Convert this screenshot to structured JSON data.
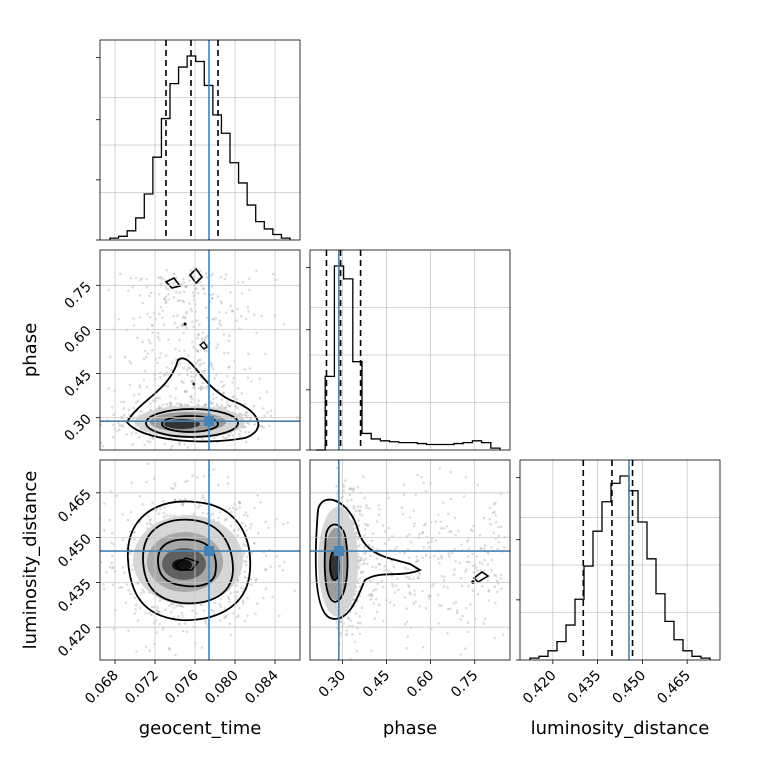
{
  "chart_data": {
    "type": "corner",
    "parameters": [
      {
        "name": "geocent_time",
        "range": [
          0.0665,
          0.0865
        ],
        "ticks": [
          0.068,
          0.072,
          0.076,
          0.08,
          0.084
        ],
        "tick_labels": [
          "0.068",
          "0.072",
          "0.076",
          "0.080",
          "0.084"
        ],
        "truth": 0.0774,
        "quantiles": [
          0.0731,
          0.0756,
          0.0783
        ]
      },
      {
        "name": "phase",
        "range": [
          0.19,
          0.87
        ],
        "ticks": [
          0.3,
          0.45,
          0.6,
          0.75
        ],
        "tick_labels": [
          "0.30",
          "0.45",
          "0.60",
          "0.75"
        ],
        "truth": 0.288,
        "quantiles": [
          0.246,
          0.294,
          0.362
        ]
      },
      {
        "name": "luminosity_distance",
        "range": [
          0.409,
          0.476
        ],
        "ticks": [
          0.42,
          0.435,
          0.45,
          0.465
        ],
        "tick_labels": [
          "0.420",
          "0.435",
          "0.450",
          "0.465"
        ],
        "truth": 0.4455,
        "quantiles": [
          0.4302,
          0.4398,
          0.4467
        ]
      }
    ],
    "histograms": [
      {
        "param": "geocent_time",
        "counts": [
          0.01,
          0.02,
          0.05,
          0.12,
          0.25,
          0.45,
          0.66,
          0.85,
          0.94,
          1.0,
          0.97,
          0.84,
          0.68,
          0.58,
          0.42,
          0.31,
          0.19,
          0.1,
          0.06,
          0.03,
          0.01
        ]
      },
      {
        "param": "phase",
        "counts": [
          0.0,
          0.4,
          1.0,
          0.93,
          0.48,
          0.09,
          0.06,
          0.05,
          0.045,
          0.04,
          0.04,
          0.035,
          0.03,
          0.03,
          0.03,
          0.035,
          0.04,
          0.05,
          0.04,
          0.01
        ]
      },
      {
        "param": "luminosity_distance",
        "counts": [
          0.01,
          0.02,
          0.05,
          0.1,
          0.19,
          0.33,
          0.51,
          0.7,
          0.86,
          0.96,
          1.0,
          0.92,
          0.75,
          0.55,
          0.36,
          0.21,
          0.11,
          0.05,
          0.02,
          0.01
        ]
      }
    ],
    "posteriors_2d": [
      {
        "x": "geocent_time",
        "y": "phase",
        "mode_x": 0.0755,
        "mode_y": 0.285
      },
      {
        "x": "geocent_time",
        "y": "luminosity_distance",
        "mode_x": 0.0755,
        "mode_y": 0.443
      },
      {
        "x": "phase",
        "y": "luminosity_distance",
        "mode_x": 0.285,
        "mode_y": 0.443
      }
    ],
    "truth_color": "#4682b4",
    "hist_color": "#000000",
    "quantile_style": "dashed"
  }
}
